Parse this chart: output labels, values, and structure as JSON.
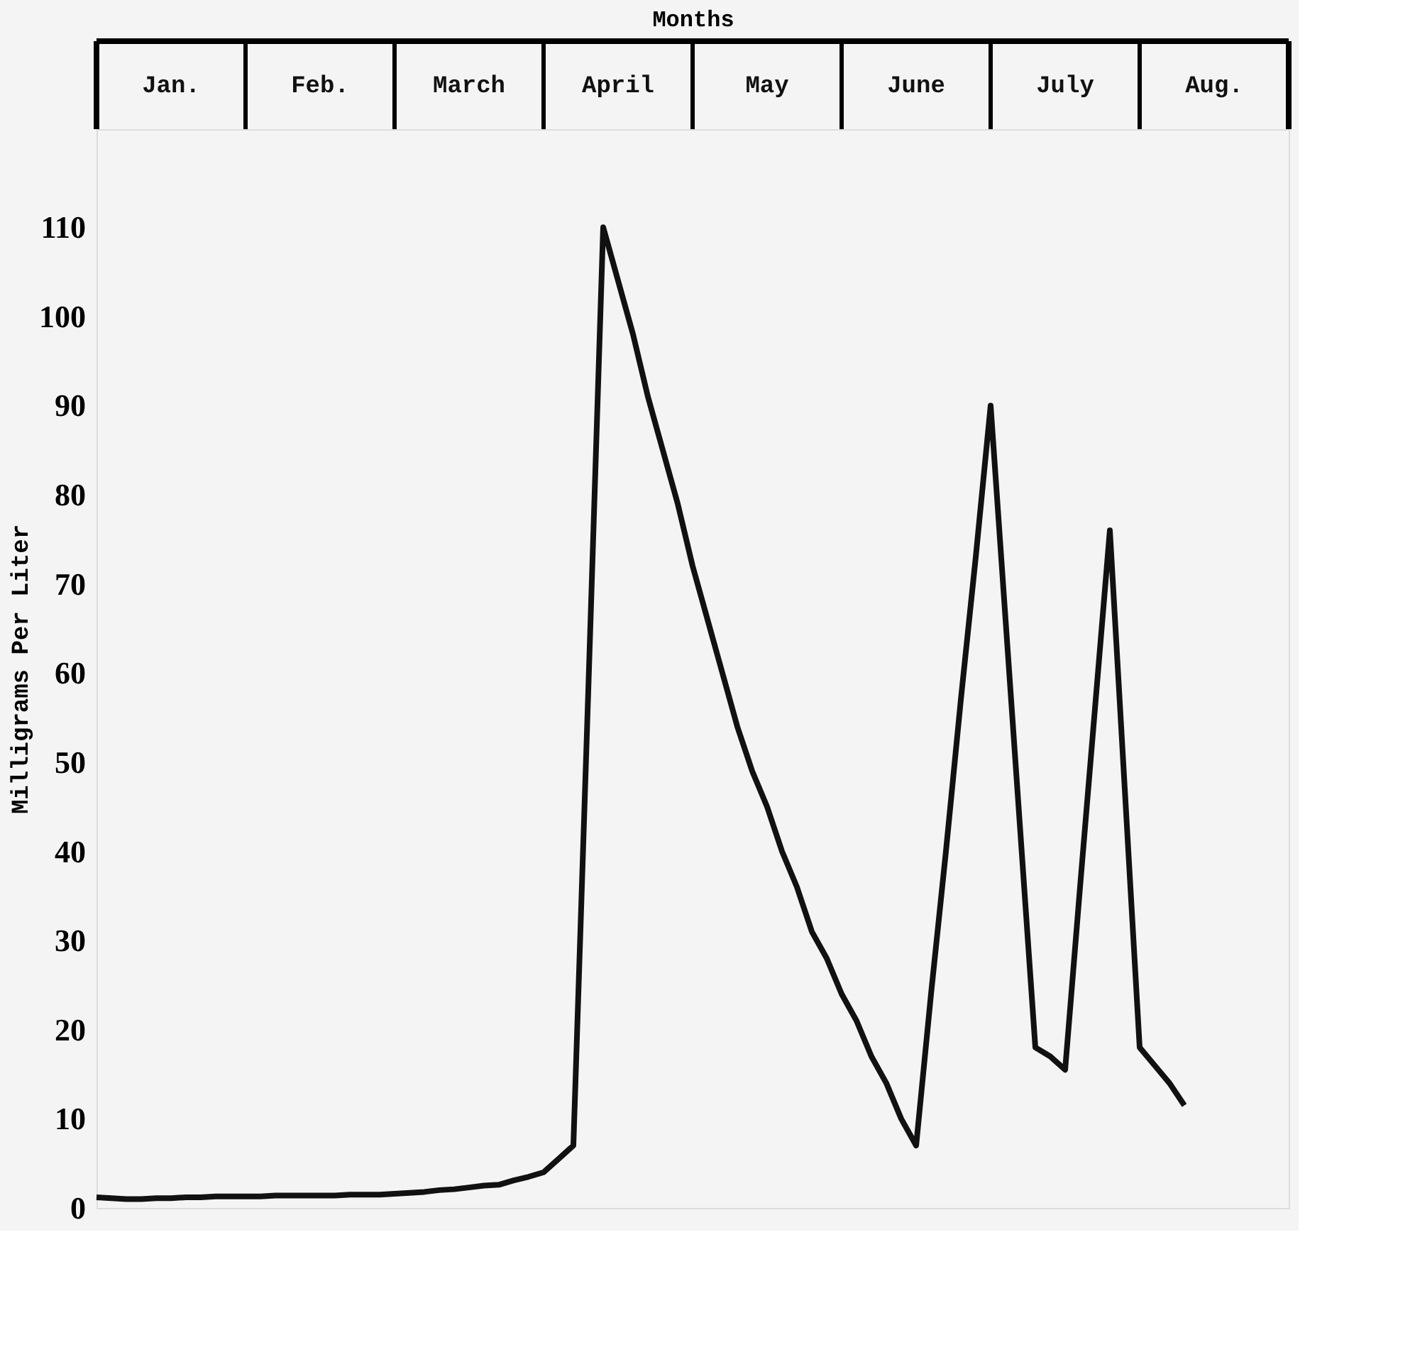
{
  "chart_data": {
    "type": "line",
    "xlabel": "Months",
    "ylabel": "Milligrams Per Liter",
    "annotations": [
      "Jan.",
      "Feb.",
      "March",
      "April",
      "May",
      "June",
      "July",
      "Aug."
    ],
    "categories": [
      null,
      null,
      null,
      null,
      null,
      null,
      null,
      null,
      null,
      null,
      null,
      null,
      null,
      null,
      null,
      null,
      null,
      null,
      null,
      null,
      null,
      null,
      null,
      null,
      null,
      null,
      null,
      null,
      null,
      null,
      null,
      null,
      null,
      null,
      null,
      null,
      null,
      null,
      null,
      null,
      null,
      null,
      null,
      null,
      null,
      null,
      null,
      null,
      null,
      null,
      null,
      null,
      null,
      null,
      null,
      null,
      null,
      null,
      null,
      null,
      null,
      null,
      null,
      null,
      null,
      null,
      null,
      null,
      null,
      null,
      null,
      null,
      null,
      null,
      null,
      null,
      null,
      null,
      null,
      null,
      null
    ],
    "series": [
      {
        "color": "#111111",
        "values": [
          1.2,
          1.1,
          1.0,
          1.0,
          1.1,
          1.1,
          1.2,
          1.2,
          1.3,
          1.3,
          1.3,
          1.3,
          1.4,
          1.4,
          1.4,
          1.4,
          1.4,
          1.5,
          1.5,
          1.5,
          1.6,
          1.7,
          1.8,
          2.0,
          2.1,
          2.3,
          2.5,
          2.6,
          3.1,
          3.5,
          4,
          5.5,
          7,
          58,
          110,
          104,
          98,
          91,
          85,
          79,
          72,
          66,
          60,
          54,
          49,
          45,
          40,
          36,
          31,
          28,
          24,
          21,
          17,
          14,
          10,
          7,
          24,
          40,
          57,
          73,
          90,
          66,
          42,
          18,
          17,
          15.5,
          36,
          56,
          76,
          47,
          18,
          16,
          14,
          11.5,
          null,
          null,
          null,
          null,
          null,
          null,
          null
        ]
      }
    ],
    "ylim": [
      0,
      121
    ],
    "yticks": [
      0,
      10,
      20,
      30,
      40,
      50,
      60,
      70,
      80,
      90,
      100,
      110
    ],
    "tick_labels": "y",
    "grid": false,
    "marker": "none",
    "line_style": "solid"
  }
}
